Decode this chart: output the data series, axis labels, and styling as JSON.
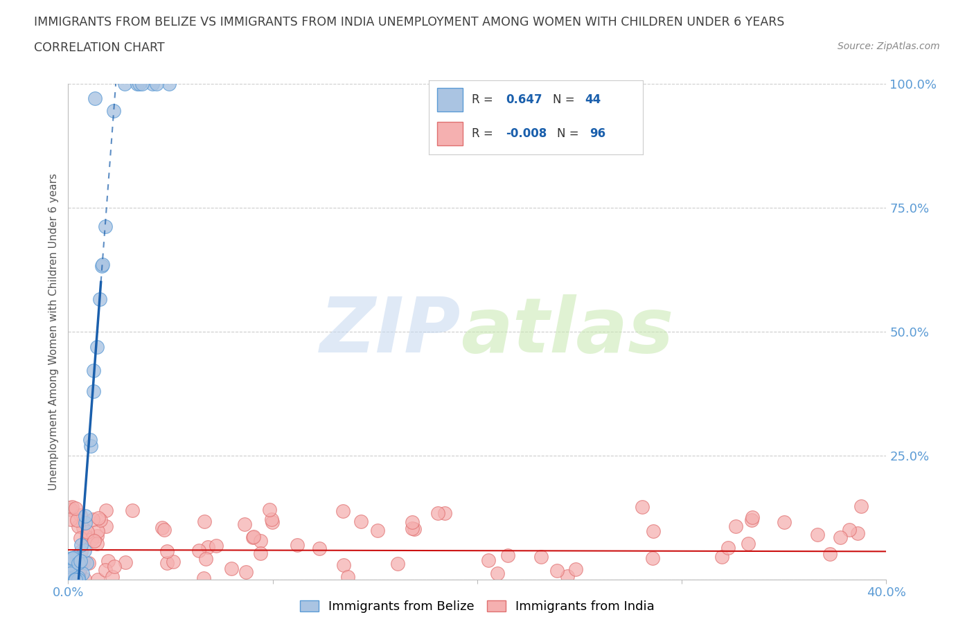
{
  "title": "IMMIGRANTS FROM BELIZE VS IMMIGRANTS FROM INDIA UNEMPLOYMENT AMONG WOMEN WITH CHILDREN UNDER 6 YEARS",
  "subtitle": "CORRELATION CHART",
  "source": "Source: ZipAtlas.com",
  "ylabel": "Unemployment Among Women with Children Under 6 years",
  "xlim": [
    0.0,
    0.4
  ],
  "ylim": [
    0.0,
    1.0
  ],
  "xtick_left": 0.0,
  "xtick_right": 0.4,
  "yticks": [
    0.0,
    0.25,
    0.5,
    0.75,
    1.0
  ],
  "yticklabels": [
    "",
    "25.0%",
    "50.0%",
    "75.0%",
    "100.0%"
  ],
  "belize_color": "#aac4e2",
  "belize_edge_color": "#5b9bd5",
  "india_color": "#f5b0b0",
  "india_edge_color": "#e07070",
  "belize_line_color": "#1a5fac",
  "india_line_color": "#cc1111",
  "belize_R": 0.647,
  "belize_N": 44,
  "india_R": -0.008,
  "india_N": 96,
  "legend_label_belize": "Immigrants from Belize",
  "legend_label_india": "Immigrants from India",
  "background_color": "#ffffff",
  "grid_color": "#cccccc",
  "tick_color": "#5b9bd5",
  "title_fontsize": 13,
  "subtitle_fontsize": 13,
  "belize_slope": 55.0,
  "belize_intercept": -0.28,
  "india_slope": -0.008,
  "india_intercept": 0.06
}
